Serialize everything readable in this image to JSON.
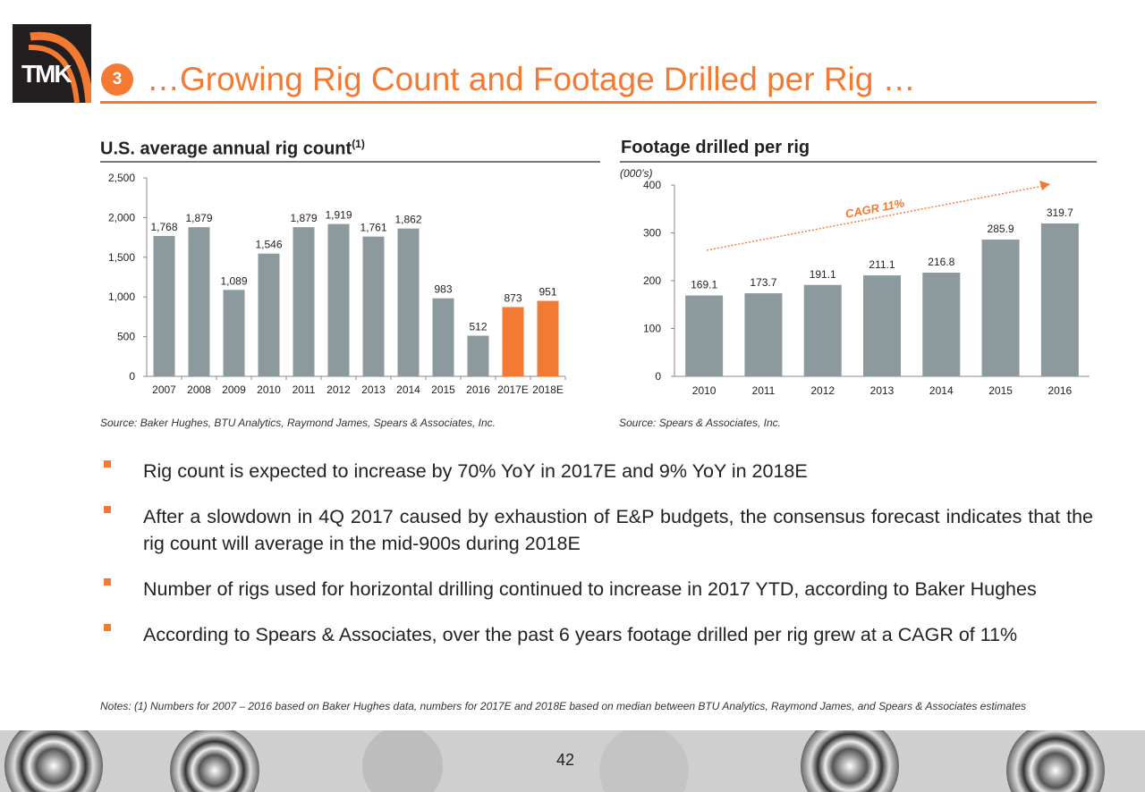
{
  "header": {
    "logo_text": "TMK",
    "badge_number": "3",
    "title": "…Growing Rig Count and Footage Drilled per Rig …"
  },
  "left_panel": {
    "title": "U.S. average annual rig count",
    "superscript": "(1)",
    "source": "Source: Baker Hughes, BTU Analytics, Raymond James, Spears & Associates, Inc."
  },
  "right_panel": {
    "title": "Footage drilled per rig",
    "unit_note": "(000’s)",
    "cagr_label": "CAGR 11%",
    "source": "Source: Spears & Associates, Inc."
  },
  "chart_data": [
    {
      "type": "bar",
      "categories": [
        "2007",
        "2008",
        "2009",
        "2010",
        "2011",
        "2012",
        "2013",
        "2014",
        "2015",
        "2016",
        "2017E",
        "2018E"
      ],
      "values": [
        1768,
        1879,
        1089,
        1546,
        1879,
        1919,
        1761,
        1862,
        983,
        512,
        873,
        951
      ],
      "labels": [
        "1,768",
        "1,879",
        "1,089",
        "1,546",
        "1,879",
        "1,919",
        "1,761",
        "1,862",
        "983",
        "512",
        "873",
        "951"
      ],
      "highlight": [
        false,
        false,
        false,
        false,
        false,
        false,
        false,
        false,
        false,
        false,
        true,
        true
      ],
      "ylim": [
        0,
        2500
      ],
      "yticks": [
        "0",
        "500",
        "1,000",
        "1,500",
        "2,000",
        "2,500"
      ],
      "ytick_values": [
        0,
        500,
        1000,
        1500,
        2000,
        2500
      ],
      "grid": false,
      "colors": {
        "bar": "#8c9a9e",
        "highlight": "#f37a32"
      }
    },
    {
      "type": "bar",
      "categories": [
        "2010",
        "2011",
        "2012",
        "2013",
        "2014",
        "2015",
        "2016"
      ],
      "values": [
        169.1,
        173.7,
        191.1,
        211.1,
        216.8,
        285.9,
        319.7
      ],
      "labels": [
        "169.1",
        "173.7",
        "191.1",
        "211.1",
        "216.8",
        "285.9",
        "319.7"
      ],
      "ylim": [
        0,
        400
      ],
      "yticks": [
        "0",
        "100",
        "200",
        "300",
        "400"
      ],
      "ytick_values": [
        0,
        100,
        200,
        300,
        400
      ],
      "grid": false,
      "colors": {
        "bar": "#8c9a9e",
        "trend": "#f37a32"
      }
    }
  ],
  "bullets": [
    "Rig count is expected to increase by 70% YoY in 2017E and 9% YoY in 2018E",
    "After a slowdown in 4Q 2017 caused by exhaustion of E&P budgets, the consensus forecast indicates that the rig count will average in the mid-900s during 2018E",
    "Number of rigs used for horizontal drilling continued to increase in 2017 YTD, according to Baker Hughes",
    "According to Spears & Associates, over the past 6 years footage drilled per rig grew at a CAGR of 11%"
  ],
  "notes": "Notes: (1) Numbers for 2007 – 2016 based on Baker Hughes data, numbers for 2017E and 2018E based on median between BTU Analytics, Raymond James, and Spears & Associates estimates",
  "footer": {
    "page_number": "42"
  },
  "colors": {
    "accent": "#f37a32",
    "bar": "#8c9a9e",
    "logo_bg": "#231f20"
  }
}
